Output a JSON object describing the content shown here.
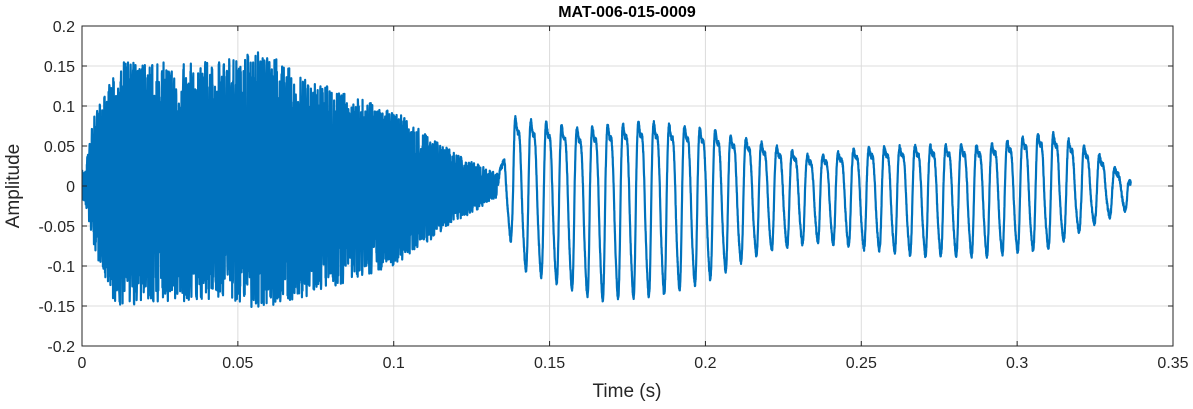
{
  "chart_data": {
    "type": "line",
    "title": "MAT-006-015-0009",
    "xlabel": "Time (s)",
    "ylabel": "Amplitude",
    "xlim": [
      0,
      0.35
    ],
    "ylim": [
      -0.2,
      0.2
    ],
    "xticks": [
      0,
      0.05,
      0.1,
      0.15,
      0.2,
      0.25,
      0.3,
      0.35
    ],
    "xtick_labels": [
      "0",
      "0.05",
      "0.1",
      "0.15",
      "0.2",
      "0.25",
      "0.3",
      "0.35"
    ],
    "yticks": [
      -0.2,
      -0.15,
      -0.1,
      -0.05,
      0,
      0.05,
      0.1,
      0.15,
      0.2
    ],
    "ytick_labels": [
      "-0.2",
      "-0.15",
      "-0.1",
      "-0.05",
      "0",
      "0.05",
      "0.1",
      "0.15",
      "0.2"
    ],
    "grid": true,
    "line_color": "#0072BD",
    "series": [
      {
        "x_start": 0,
        "x_end": 0.3365,
        "segments": [
          {
            "type": "noise",
            "x_start": 0.0,
            "x_end": 0.1335,
            "y_min": -0.155,
            "y_max": 0.17
          },
          {
            "type": "periodic",
            "x_start": 0.1335,
            "x_end": 0.3365,
            "period": 0.00493,
            "cycles": 41,
            "y_min": -0.155,
            "y_max": 0.12
          }
        ],
        "envelope_peaks": [
          {
            "x": 0.001,
            "y": 0.02
          },
          {
            "x": 0.004,
            "y": 0.095
          },
          {
            "x": 0.013,
            "y": 0.155
          },
          {
            "x": 0.041,
            "y": 0.155
          },
          {
            "x": 0.058,
            "y": 0.172
          },
          {
            "x": 0.071,
            "y": 0.135
          },
          {
            "x": 0.1,
            "y": 0.095
          },
          {
            "x": 0.12,
            "y": 0.04
          },
          {
            "x": 0.1335,
            "y": 0.015
          },
          {
            "x": 0.138,
            "y": 0.12
          },
          {
            "x": 0.16,
            "y": 0.1
          },
          {
            "x": 0.18,
            "y": 0.112
          },
          {
            "x": 0.2,
            "y": 0.1
          },
          {
            "x": 0.218,
            "y": 0.075
          },
          {
            "x": 0.235,
            "y": 0.05
          },
          {
            "x": 0.25,
            "y": 0.065
          },
          {
            "x": 0.27,
            "y": 0.07
          },
          {
            "x": 0.29,
            "y": 0.07
          },
          {
            "x": 0.31,
            "y": 0.095
          },
          {
            "x": 0.325,
            "y": 0.06
          },
          {
            "x": 0.3365,
            "y": 0.005
          }
        ],
        "envelope_troughs": [
          {
            "x": 0.001,
            "y": -0.02
          },
          {
            "x": 0.004,
            "y": -0.08
          },
          {
            "x": 0.011,
            "y": -0.152
          },
          {
            "x": 0.045,
            "y": -0.14
          },
          {
            "x": 0.056,
            "y": -0.155
          },
          {
            "x": 0.071,
            "y": -0.14
          },
          {
            "x": 0.1,
            "y": -0.1
          },
          {
            "x": 0.12,
            "y": -0.045
          },
          {
            "x": 0.1335,
            "y": -0.015
          },
          {
            "x": 0.14,
            "y": -0.11
          },
          {
            "x": 0.165,
            "y": -0.155
          },
          {
            "x": 0.185,
            "y": -0.15
          },
          {
            "x": 0.2,
            "y": -0.13
          },
          {
            "x": 0.218,
            "y": -0.09
          },
          {
            "x": 0.235,
            "y": -0.075
          },
          {
            "x": 0.25,
            "y": -0.085
          },
          {
            "x": 0.27,
            "y": -0.095
          },
          {
            "x": 0.29,
            "y": -0.095
          },
          {
            "x": 0.31,
            "y": -0.085
          },
          {
            "x": 0.325,
            "y": -0.05
          },
          {
            "x": 0.3365,
            "y": -0.03
          }
        ]
      }
    ]
  }
}
